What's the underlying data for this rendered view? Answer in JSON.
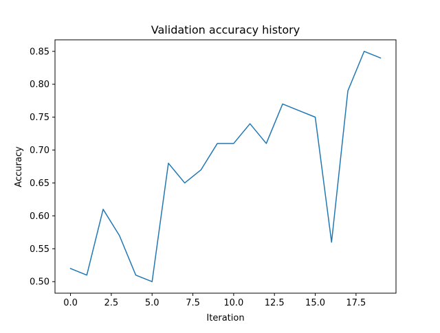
{
  "chart_data": {
    "type": "line",
    "title": "Validation accuracy history",
    "xlabel": "Iteration",
    "ylabel": "Accuracy",
    "xlim": [
      -0.95,
      19.95
    ],
    "ylim": [
      0.4825,
      0.8675
    ],
    "grid": false,
    "legend": "none",
    "x_ticks": [
      0.0,
      2.5,
      5.0,
      7.5,
      10.0,
      12.5,
      15.0,
      17.5
    ],
    "x_tick_labels": [
      "0.0",
      "2.5",
      "5.0",
      "7.5",
      "10.0",
      "12.5",
      "15.0",
      "17.5"
    ],
    "y_ticks": [
      0.5,
      0.55,
      0.6,
      0.65,
      0.7,
      0.75,
      0.8,
      0.85
    ],
    "y_tick_labels": [
      "0.50",
      "0.55",
      "0.60",
      "0.65",
      "0.70",
      "0.75",
      "0.80",
      "0.85"
    ],
    "series": [
      {
        "color": "#1f77b4",
        "x": [
          0,
          1,
          2,
          3,
          4,
          5,
          6,
          7,
          8,
          9,
          10,
          11,
          12,
          13,
          14,
          15,
          16,
          17,
          18,
          19
        ],
        "y": [
          0.52,
          0.51,
          0.61,
          0.57,
          0.51,
          0.5,
          0.68,
          0.65,
          0.67,
          0.71,
          0.71,
          0.74,
          0.71,
          0.77,
          0.76,
          0.75,
          0.56,
          0.79,
          0.85,
          0.84
        ]
      }
    ]
  }
}
